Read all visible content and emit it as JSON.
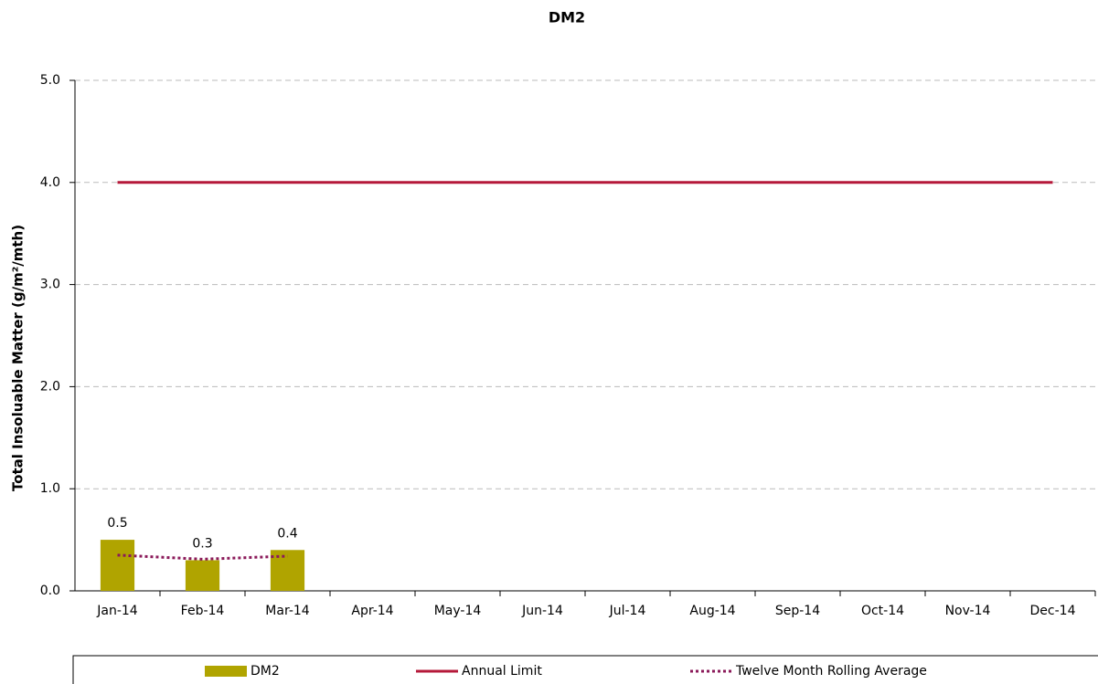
{
  "chart_data": {
    "type": "bar",
    "title": "DM2",
    "y_label": "Total Insoluable Matter (g/m²/mth)",
    "categories": [
      "Jan-14",
      "Feb-14",
      "Mar-14",
      "Apr-14",
      "May-14",
      "Jun-14",
      "Jul-14",
      "Aug-14",
      "Sep-14",
      "Oct-14",
      "Nov-14",
      "Dec-14"
    ],
    "series": [
      {
        "name": "DM2",
        "type": "bar",
        "color": "#b0a400",
        "values": [
          0.5,
          0.3,
          0.4,
          null,
          null,
          null,
          null,
          null,
          null,
          null,
          null,
          null
        ]
      },
      {
        "name": "Annual Limit",
        "type": "line",
        "line_style": "solid",
        "color": "#b5193a",
        "values": [
          4,
          4,
          4,
          4,
          4,
          4,
          4,
          4,
          4,
          4,
          4,
          4
        ]
      },
      {
        "name": "Twelve Month Rolling Average",
        "type": "line",
        "line_style": "dotted",
        "color": "#8b1a5a",
        "values": [
          0.35,
          0.31,
          0.34,
          null,
          null,
          null,
          null,
          null,
          null,
          null,
          null,
          null
        ]
      }
    ],
    "ylim": [
      0,
      5
    ],
    "yticks": [
      {
        "value": 0,
        "label": "0.0"
      },
      {
        "value": 1,
        "label": "1.0"
      },
      {
        "value": 2,
        "label": "2.0"
      },
      {
        "value": 3,
        "label": "3.0"
      },
      {
        "value": 4,
        "label": "4.0"
      },
      {
        "value": 5,
        "label": "5.0"
      }
    ],
    "grid": true,
    "legend": "bottom"
  }
}
